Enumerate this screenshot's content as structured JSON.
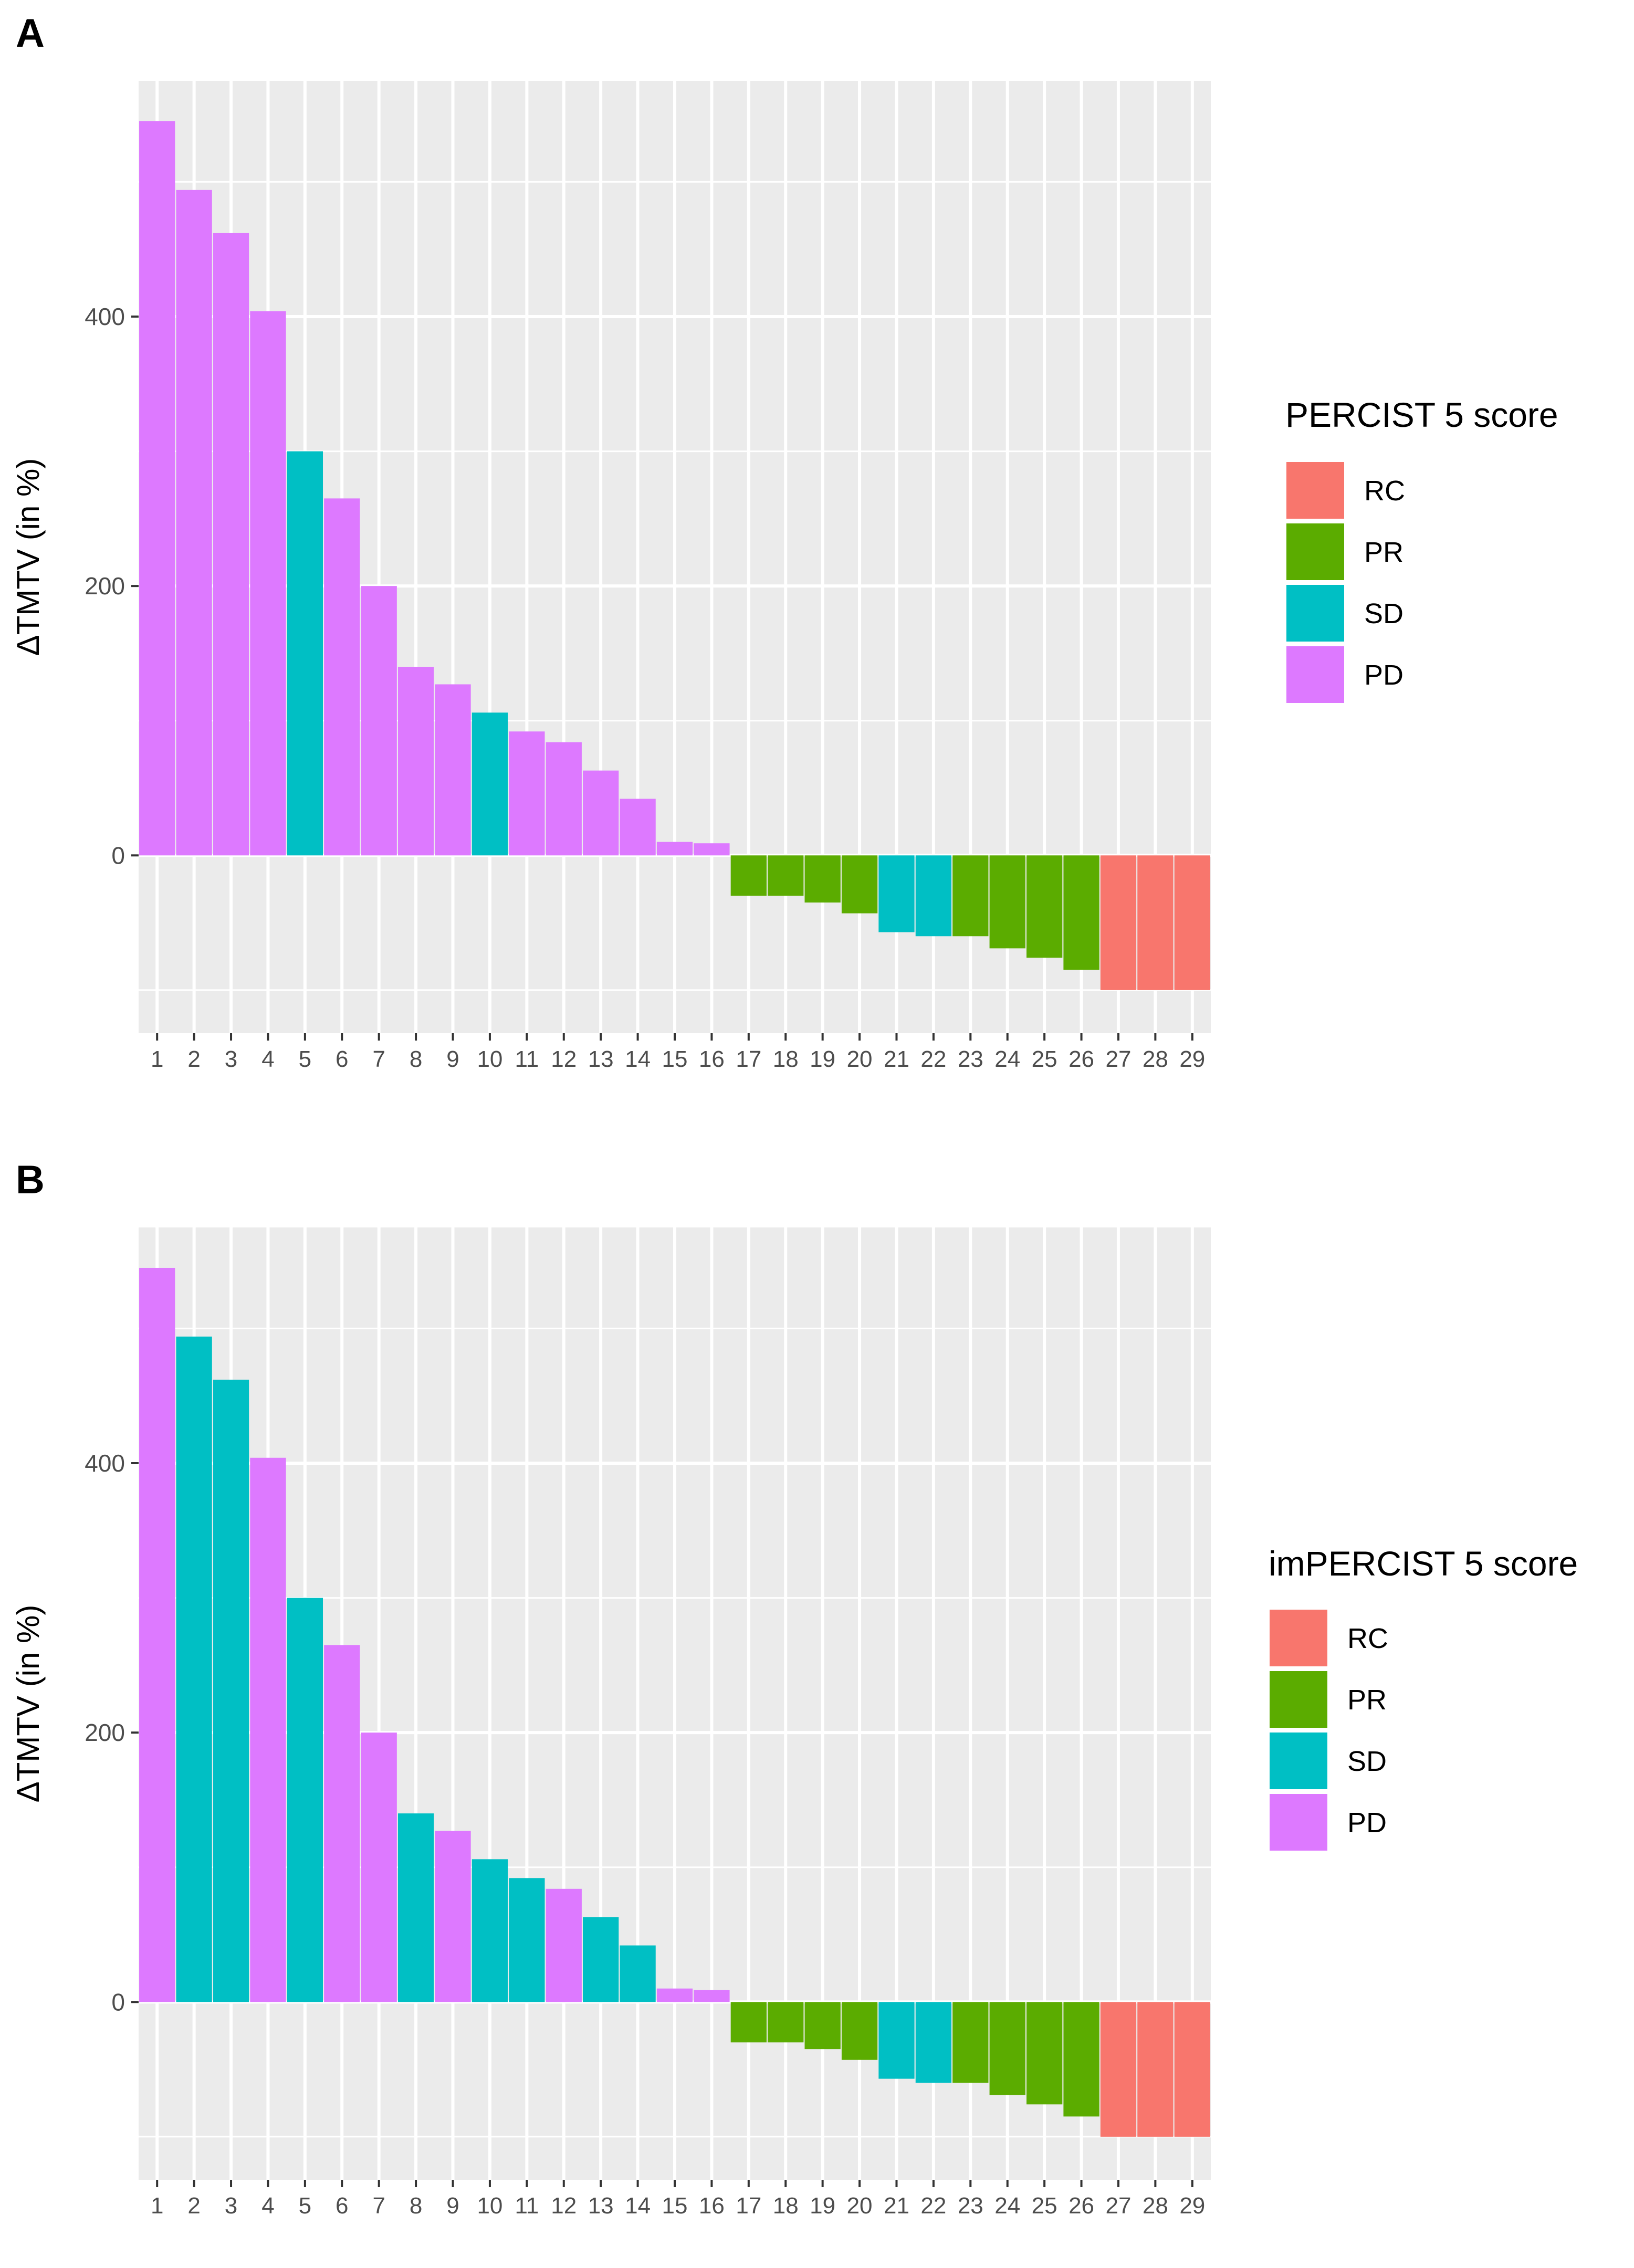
{
  "chart_data": [
    {
      "panel_label": "A",
      "type": "bar",
      "categories": [
        "1",
        "2",
        "3",
        "4",
        "5",
        "6",
        "7",
        "8",
        "9",
        "10",
        "11",
        "12",
        "13",
        "14",
        "15",
        "16",
        "17",
        "18",
        "19",
        "20",
        "21",
        "22",
        "23",
        "24",
        "25",
        "26",
        "27",
        "28",
        "29"
      ],
      "values": [
        545,
        494,
        462,
        404,
        300,
        265,
        200,
        140,
        127,
        106,
        92,
        84,
        63,
        42,
        10,
        9,
        -30,
        -30,
        -35,
        -43,
        -57,
        -60,
        -60,
        -69,
        -76,
        -85,
        -100,
        -100,
        -100
      ],
      "classes": [
        "PD",
        "PD",
        "PD",
        "PD",
        "SD",
        "PD",
        "PD",
        "PD",
        "PD",
        "SD",
        "PD",
        "PD",
        "PD",
        "PD",
        "PD",
        "PD",
        "PR",
        "PR",
        "PR",
        "PR",
        "SD",
        "SD",
        "PR",
        "PR",
        "PR",
        "PR",
        "RC",
        "RC",
        "RC"
      ],
      "xlabel": "",
      "ylabel": "ΔTMTV (in %)",
      "ylim": [
        -132,
        575
      ],
      "yticks": [
        0,
        200,
        400
      ],
      "ytick_labels": [
        "0",
        "200",
        "400"
      ],
      "grid": true,
      "legend": {
        "title": "PERCIST 5 score",
        "position": "right",
        "entries": [
          "RC",
          "PR",
          "SD",
          "PD"
        ]
      }
    },
    {
      "panel_label": "B",
      "type": "bar",
      "categories": [
        "1",
        "2",
        "3",
        "4",
        "5",
        "6",
        "7",
        "8",
        "9",
        "10",
        "11",
        "12",
        "13",
        "14",
        "15",
        "16",
        "17",
        "18",
        "19",
        "20",
        "21",
        "22",
        "23",
        "24",
        "25",
        "26",
        "27",
        "28",
        "29"
      ],
      "values": [
        545,
        494,
        462,
        404,
        300,
        265,
        200,
        140,
        127,
        106,
        92,
        84,
        63,
        42,
        10,
        9,
        -30,
        -30,
        -35,
        -43,
        -57,
        -60,
        -60,
        -69,
        -76,
        -85,
        -100,
        -100,
        -100
      ],
      "classes": [
        "PD",
        "SD",
        "SD",
        "PD",
        "SD",
        "PD",
        "PD",
        "SD",
        "PD",
        "SD",
        "SD",
        "PD",
        "SD",
        "SD",
        "PD",
        "PD",
        "PR",
        "PR",
        "PR",
        "PR",
        "SD",
        "SD",
        "PR",
        "PR",
        "PR",
        "PR",
        "RC",
        "RC",
        "RC"
      ],
      "xlabel": "",
      "ylabel": "ΔTMTV (in %)",
      "ylim": [
        -132,
        575
      ],
      "yticks": [
        0,
        200,
        400
      ],
      "ytick_labels": [
        "0",
        "200",
        "400"
      ],
      "grid": true,
      "legend": {
        "title": "imPERCIST 5 score",
        "position": "right",
        "entries": [
          "RC",
          "PR",
          "SD",
          "PD"
        ]
      }
    }
  ],
  "colors": {
    "RC": "#F8766D",
    "PR": "#5BAC00",
    "SD": "#00BFC4",
    "PD": "#DD79FF",
    "panel_bg": "#EBEBEB",
    "grid": "#FFFFFF"
  }
}
